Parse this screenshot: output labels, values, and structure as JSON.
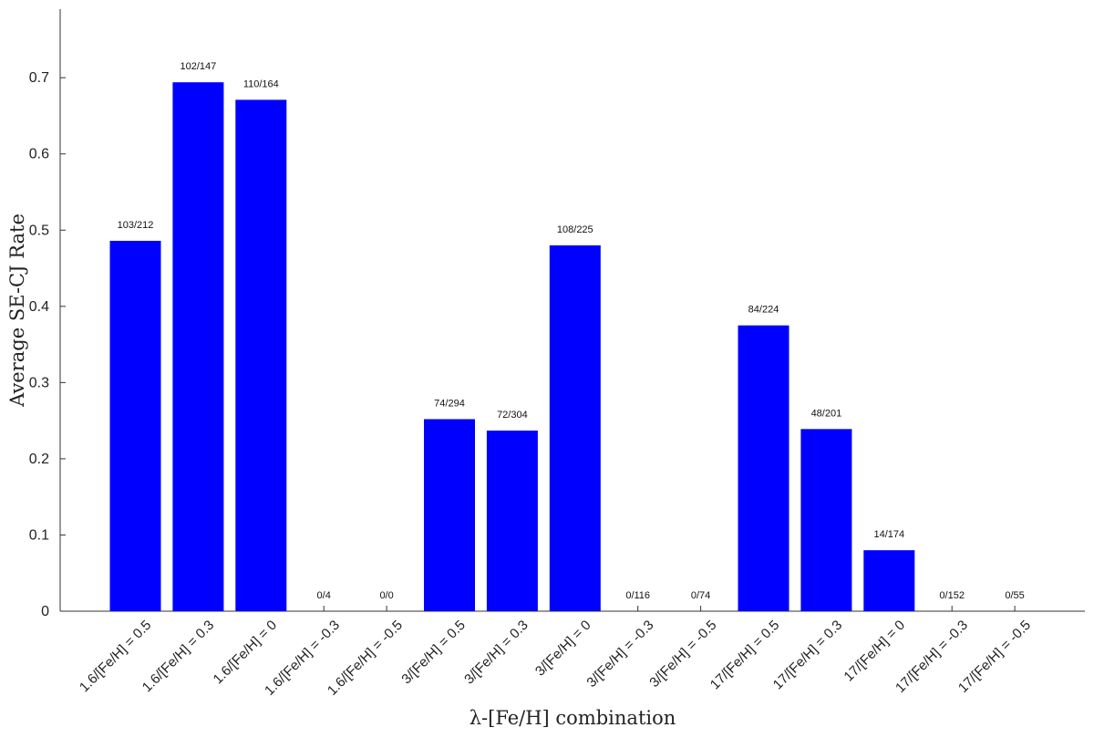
{
  "chart_data": {
    "type": "bar",
    "xlabel": "λ-[Fe/H] combination",
    "ylabel": "Average SE-CJ Rate",
    "ylim": [
      0,
      0.79
    ],
    "yticks": [
      "0",
      "0.1",
      "0.2",
      "0.3",
      "0.4",
      "0.5",
      "0.6",
      "0.7"
    ],
    "grid": false,
    "bar_color": "#0000ff",
    "categories": [
      "1.6/[Fe/H] = 0.5",
      "1.6/[Fe/H] = 0.3",
      "1.6/[Fe/H] = 0",
      "1.6/[Fe/H] = -0.3",
      "1.6/[Fe/H] = -0.5",
      "3/[Fe/H] = 0.5",
      "3/[Fe/H] = 0.3",
      "3/[Fe/H] = 0",
      "3/[Fe/H] = -0.3",
      "3/[Fe/H] = -0.5",
      "17/[Fe/H] = 0.5",
      "17/[Fe/H] = 0.3",
      "17/[Fe/H] = 0",
      "17/[Fe/H] = -0.3",
      "17/[Fe/H] = -0.5"
    ],
    "values": [
      0.486,
      0.694,
      0.671,
      0,
      0,
      0.252,
      0.237,
      0.48,
      0,
      0,
      0.375,
      0.239,
      0.08,
      0,
      0
    ],
    "data_labels": [
      "103/212",
      "102/147",
      "110/164",
      "0/4",
      "0/0",
      "74/294",
      "72/304",
      "108/225",
      "0/116",
      "0/74",
      "84/224",
      "48/201",
      "14/174",
      "0/152",
      "0/55"
    ]
  }
}
